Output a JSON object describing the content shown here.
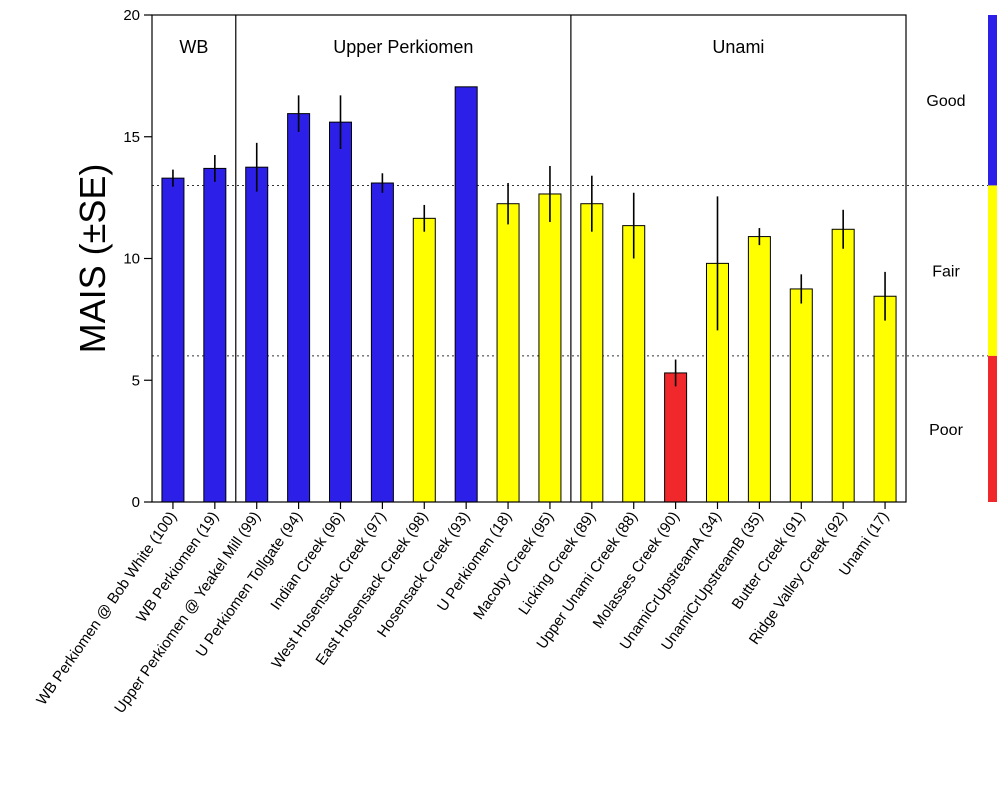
{
  "chart_data": {
    "type": "bar",
    "ylabel": "MAIS (±SE)",
    "ylim": [
      0,
      20
    ],
    "yticks": [
      0,
      5,
      10,
      15,
      20
    ],
    "thresholds": [
      6,
      13
    ],
    "groups": [
      {
        "label": "WB",
        "start": 0,
        "end": 1
      },
      {
        "label": "Upper Perkiomen",
        "start": 2,
        "end": 9
      },
      {
        "label": "Unami",
        "start": 10,
        "end": 17
      }
    ],
    "categories": [
      "WB Perkiomen @ Bob White (100)",
      "WB Perkiomen (19)",
      "Upper Perkiomen @ Yeakel Mill (99)",
      "U Perkiomen Tollgate (94)",
      "Indian Creek (96)",
      "West Hosensack Creek (97)",
      "East Hosensack Creek (98)",
      "Hosensack Creek (93)",
      "U Perkiomen (18)",
      "Macoby Creek (95)",
      "Licking Creek (89)",
      "Upper Unami Creek (88)",
      "Molasses Creek (90)",
      "UnamiCrUpstreamA (34)",
      "UnamiCrUpstreamB (35)",
      "Butter Creek (91)",
      "Ridge Valley Creek (92)",
      "Unami (17)"
    ],
    "values": [
      13.3,
      13.7,
      13.75,
      15.95,
      15.6,
      13.1,
      11.65,
      17.05,
      12.25,
      12.65,
      12.25,
      11.35,
      5.3,
      9.8,
      10.9,
      8.75,
      11.2,
      8.45
    ],
    "errors": [
      0.35,
      0.55,
      1.0,
      0.75,
      1.1,
      0.4,
      0.55,
      0,
      0.85,
      1.15,
      1.15,
      1.35,
      0.55,
      2.75,
      0.35,
      0.6,
      0.8,
      1.0
    ],
    "colors": [
      "#2b1fe8",
      "#2b1fe8",
      "#2b1fe8",
      "#2b1fe8",
      "#2b1fe8",
      "#2b1fe8",
      "#ffff00",
      "#2b1fe8",
      "#ffff00",
      "#ffff00",
      "#ffff00",
      "#ffff00",
      "#f0282c",
      "#ffff00",
      "#ffff00",
      "#ffff00",
      "#ffff00",
      "#ffff00"
    ],
    "legend_bands": [
      {
        "label": "Good",
        "from": 13,
        "to": 20,
        "color": "#2b1fe8"
      },
      {
        "label": "Fair",
        "from": 6,
        "to": 13,
        "color": "#ffff00"
      },
      {
        "label": "Poor",
        "from": 0,
        "to": 6,
        "color": "#f0282c"
      }
    ]
  }
}
